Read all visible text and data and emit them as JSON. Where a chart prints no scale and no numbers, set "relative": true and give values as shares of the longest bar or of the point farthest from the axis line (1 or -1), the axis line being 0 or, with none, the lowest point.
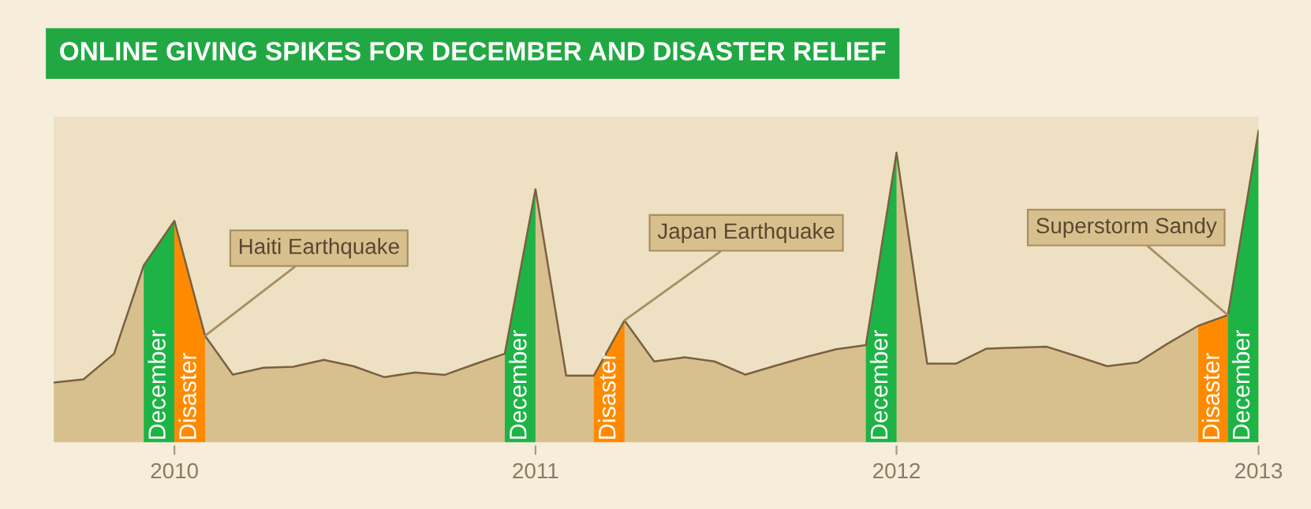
{
  "chart_data": {
    "type": "area",
    "title": "ONLINE GIVING SPIKES FOR DECEMBER AND DISASTER RELIEF",
    "relative": true,
    "x": [
      "2009-09",
      "2009-10",
      "2009-11",
      "2009-12",
      "2010-01",
      "2010-02",
      "2010-03",
      "2010-04",
      "2010-05",
      "2010-06",
      "2010-07",
      "2010-08",
      "2010-09",
      "2010-10",
      "2010-11",
      "2010-12",
      "2011-01",
      "2011-02",
      "2011-03",
      "2011-04",
      "2011-05",
      "2011-06",
      "2011-07",
      "2011-08",
      "2011-09",
      "2011-10",
      "2011-11",
      "2011-12",
      "2012-01",
      "2012-02",
      "2012-03",
      "2012-04",
      "2012-05",
      "2012-06",
      "2012-07",
      "2012-08",
      "2012-09",
      "2012-10",
      "2012-11",
      "2012-12",
      "2013-01"
    ],
    "series": [
      {
        "color": "#d8c08e",
        "values": [
          0.196,
          0.206,
          0.288,
          0.57,
          0.712,
          0.345,
          0.221,
          0.243,
          0.246,
          0.268,
          0.248,
          0.213,
          0.228,
          0.22,
          0.255,
          0.288,
          0.813,
          0.218,
          0.218,
          0.394,
          0.263,
          0.276,
          0.263,
          0.221,
          0.25,
          0.277,
          0.302,
          0.315,
          0.93,
          0.256,
          0.256,
          0.304,
          0.307,
          0.31,
          0.28,
          0.248,
          0.26,
          0.32,
          0.377,
          0.411,
          1
        ]
      }
    ],
    "xlim": [
      "2009-09",
      "2013-01"
    ],
    "xticks": [
      {
        "value": "2010-01",
        "label": "2010"
      },
      {
        "value": "2011-01",
        "label": "2011"
      },
      {
        "value": "2012-01",
        "label": "2012"
      },
      {
        "value": "2013-01",
        "label": "2013"
      }
    ],
    "bands": [
      {
        "axis": "x",
        "from": "2009-12",
        "to": "2010-01",
        "label": "December",
        "color": "#1db445"
      },
      {
        "axis": "x",
        "from": "2010-01",
        "to": "2010-02",
        "label": "Disaster",
        "color": "#ff8a00"
      },
      {
        "axis": "x",
        "from": "2010-12",
        "to": "2011-01",
        "label": "December",
        "color": "#1db445"
      },
      {
        "axis": "x",
        "from": "2011-03",
        "to": "2011-04",
        "label": "Disaster",
        "color": "#ff8a00"
      },
      {
        "axis": "x",
        "from": "2011-12",
        "to": "2012-01",
        "label": "December",
        "color": "#1db445"
      },
      {
        "axis": "x",
        "from": "2012-11",
        "to": "2012-12",
        "label": "Disaster",
        "color": "#ff8a00"
      },
      {
        "axis": "x",
        "from": "2012-12",
        "to": "2013-01",
        "label": "December",
        "color": "#1db445"
      }
    ],
    "annotations": [
      {
        "text": "Haiti Earthquake",
        "x": "2010-02",
        "y": 0.345
      },
      {
        "text": "Japan Earthquake",
        "x": "2011-04",
        "y": 0.394
      },
      {
        "text": "Superstorm Sandy",
        "x": "2012-12",
        "y": 0.411
      }
    ],
    "tick_labels": "x",
    "grid": false
  }
}
